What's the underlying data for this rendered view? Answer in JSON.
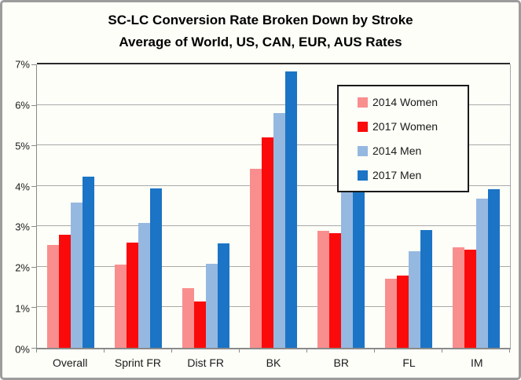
{
  "title": {
    "line1": "SC-LC Conversion Rate Broken Down by Stroke",
    "line2": "Average of World, US, CAN, EUR, AUS Rates"
  },
  "colors": {
    "women_2014": "#f98e8e",
    "women_2017": "#fa0a0a",
    "men_2014": "#95b8e0",
    "men_2017": "#1b74c5",
    "gridline": "#a9a9a9",
    "axis": "#8a8a8a",
    "background": "#fdfef8",
    "outer_border": "#9c9c9c",
    "legend_border": "#1a1a1a"
  },
  "legend": {
    "items": [
      {
        "label": "2014 Women",
        "color": "#f98e8e"
      },
      {
        "label": "2017 Women",
        "color": "#fa0a0a"
      },
      {
        "label": "2014 Men",
        "color": "#95b8e0"
      },
      {
        "label": "2017 Men",
        "color": "#1b74c5"
      }
    ],
    "position": "upper-right-inside"
  },
  "y_axis": {
    "tick_labels": [
      "0%",
      "1%",
      "2%",
      "3%",
      "4%",
      "5%",
      "6%",
      "7%"
    ],
    "min": 0,
    "max": 7
  },
  "chart_data": {
    "type": "bar",
    "title": "SC-LC Conversion Rate Broken Down by Stroke",
    "subtitle": "Average of World, US, CAN, EUR, AUS Rates",
    "categories": [
      "Overall",
      "Sprint FR",
      "Dist FR",
      "BK",
      "BR",
      "FL",
      "IM"
    ],
    "series": [
      {
        "name": "2014 Women",
        "color": "#f98e8e",
        "values": [
          2.55,
          2.05,
          1.48,
          4.42,
          2.88,
          1.7,
          2.48
        ]
      },
      {
        "name": "2017 Women",
        "color": "#fa0a0a",
        "values": [
          2.8,
          2.6,
          1.15,
          5.2,
          2.84,
          1.78,
          2.42
        ]
      },
      {
        "name": "2014 Men",
        "color": "#95b8e0",
        "values": [
          3.58,
          3.08,
          2.07,
          5.8,
          4.1,
          2.39,
          3.69
        ]
      },
      {
        "name": "2017 Men",
        "color": "#1b74c5",
        "values": [
          4.22,
          3.93,
          2.58,
          6.83,
          4.28,
          2.9,
          3.92
        ]
      }
    ],
    "xlabel": "",
    "ylabel": "",
    "ylim": [
      0,
      7
    ],
    "y_tick_step": 1,
    "y_tick_format": "percent",
    "grid": true,
    "legend_position": "upper-right-inside"
  }
}
